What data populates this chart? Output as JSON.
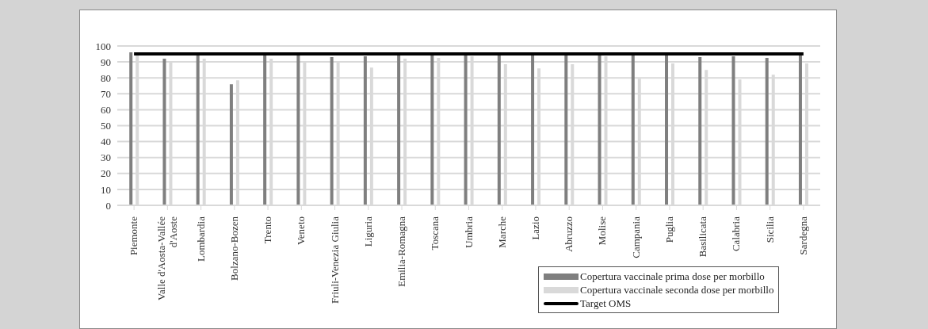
{
  "chart_data": {
    "type": "bar",
    "categories": [
      "Piemonte",
      "Valle d'Aosta-Vallée d'Aoste",
      "Lombardia",
      "Bolzano-Bozen",
      "Trento",
      "Veneto",
      "Friuli-Venezia Giulia",
      "Liguria",
      "Emilia-Romagna",
      "Toscana",
      "Umbria",
      "Marche",
      "Lazio",
      "Abruzzo",
      "Molise",
      "Campania",
      "Puglia",
      "Basilicata",
      "Calabria",
      "Sicilia",
      "Sardegna"
    ],
    "series": [
      {
        "name": "Copertura vaccinale prima dose per morbillo",
        "color": "#7f7f7f",
        "values": [
          96,
          92,
          95,
          76,
          95,
          95,
          93,
          93.5,
          95,
          95,
          95,
          95,
          95,
          95,
          95,
          95,
          95,
          93,
          93.5,
          92.5,
          95
        ]
      },
      {
        "name": "Copertura vaccinale seconda dose per morbillo",
        "color": "#d9d9d9",
        "values": [
          94,
          90.5,
          92,
          78.5,
          92,
          90,
          89.5,
          86.5,
          92,
          92.5,
          93.5,
          88.5,
          86,
          88.5,
          93.5,
          79.5,
          89,
          85,
          79,
          82,
          89
        ]
      },
      {
        "name": "Target OMS",
        "type": "line",
        "color": "#000000",
        "values": [
          95,
          95,
          95,
          95,
          95,
          95,
          95,
          95,
          95,
          95,
          95,
          95,
          95,
          95,
          95,
          95,
          95,
          95,
          95,
          95,
          95
        ]
      }
    ],
    "ylim": [
      0,
      100
    ],
    "yticks": [
      0,
      10,
      20,
      30,
      40,
      50,
      60,
      70,
      80,
      90,
      100
    ],
    "grid": "y",
    "legend": "bottom right",
    "marker": "none",
    "line_style": "solid"
  }
}
